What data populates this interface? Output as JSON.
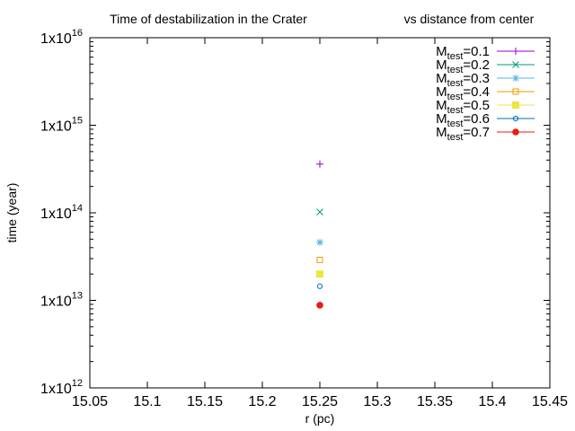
{
  "chart_data": {
    "type": "scatter",
    "title_left": "Time of destabilization in the Crater",
    "title_right": "vs distance from center",
    "xlabel": "r (pc)",
    "ylabel": "time (year)",
    "xlim": [
      15.05,
      15.45
    ],
    "ylim": [
      1000000000000.0,
      1e+16
    ],
    "yscale": "log",
    "x_ticks": [
      "15.05",
      "15.1",
      "15.15",
      "15.2",
      "15.25",
      "15.3",
      "15.35",
      "15.4",
      "15.45"
    ],
    "x_tick_values": [
      15.05,
      15.1,
      15.15,
      15.2,
      15.25,
      15.3,
      15.35,
      15.4,
      15.45
    ],
    "y_ticks": [
      {
        "base": "1x10",
        "exp": "12",
        "value": 1000000000000.0
      },
      {
        "base": "1x10",
        "exp": "13",
        "value": 10000000000000.0
      },
      {
        "base": "1x10",
        "exp": "14",
        "value": 100000000000000.0
      },
      {
        "base": "1x10",
        "exp": "15",
        "value": 1000000000000000.0
      },
      {
        "base": "1x10",
        "exp": "16",
        "value": 1e+16
      }
    ],
    "grid": false,
    "legend_position": "top-right",
    "series": [
      {
        "label_main": "M",
        "label_sub": "test",
        "label_rest": "=0.1",
        "marker": "plus",
        "color": "#9400d3",
        "x": [
          15.25
        ],
        "y": [
          360000000000000.0
        ]
      },
      {
        "label_main": "M",
        "label_sub": "test",
        "label_rest": "=0.2",
        "marker": "cross",
        "color": "#009e73",
        "x": [
          15.25
        ],
        "y": [
          102000000000000.0
        ]
      },
      {
        "label_main": "M",
        "label_sub": "test",
        "label_rest": "=0.3",
        "marker": "star",
        "color": "#56b4e9",
        "x": [
          15.25
        ],
        "y": [
          46000000000000.0
        ]
      },
      {
        "label_main": "M",
        "label_sub": "test",
        "label_rest": "=0.4",
        "marker": "open-square",
        "color": "#e69f00",
        "x": [
          15.25
        ],
        "y": [
          29000000000000.0
        ]
      },
      {
        "label_main": "M",
        "label_sub": "test",
        "label_rest": "=0.5",
        "marker": "filled-square",
        "color": "#f0e442",
        "x": [
          15.25
        ],
        "y": [
          20000000000000.0
        ]
      },
      {
        "label_main": "M",
        "label_sub": "test",
        "label_rest": "=0.6",
        "marker": "open-circle",
        "color": "#0072b2",
        "x": [
          15.25
        ],
        "y": [
          14500000000000.0
        ]
      },
      {
        "label_main": "M",
        "label_sub": "test",
        "label_rest": "=0.7",
        "marker": "filled-circle",
        "color": "#e51e10",
        "x": [
          15.25
        ],
        "y": [
          8800000000000.0
        ]
      }
    ]
  }
}
